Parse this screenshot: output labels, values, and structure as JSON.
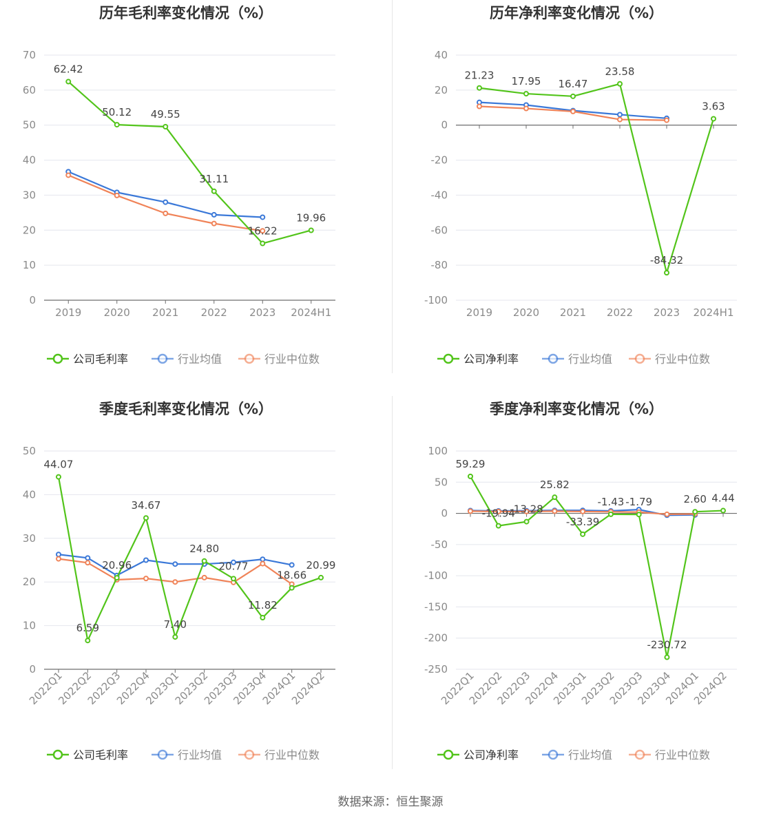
{
  "chart_data": [
    {
      "type": "line",
      "title": "历年毛利率变化情况（%）",
      "categories": [
        "2019",
        "2020",
        "2021",
        "2022",
        "2023",
        "2024H1"
      ],
      "ylim": [
        0,
        70
      ],
      "yticks": [
        0,
        10,
        20,
        30,
        40,
        50,
        60,
        70
      ],
      "x_rotated": false,
      "grid": true,
      "legend_position": "bottom",
      "series": [
        {
          "name": "公司毛利率",
          "color": "#52c41a",
          "values": [
            62.42,
            50.12,
            49.55,
            31.11,
            16.22,
            19.96
          ],
          "labels": [
            "62.42",
            "50.12",
            "49.55",
            "31.11",
            "16.22",
            "19.96"
          ]
        },
        {
          "name": "行业均值",
          "color": "#3a78d8",
          "values": [
            36.7,
            30.8,
            28.0,
            24.4,
            23.7,
            null
          ]
        },
        {
          "name": "行业中位数",
          "color": "#f08358",
          "values": [
            35.7,
            29.9,
            24.8,
            21.9,
            19.8,
            null
          ]
        }
      ]
    },
    {
      "type": "line",
      "title": "历年净利率变化情况（%）",
      "categories": [
        "2019",
        "2020",
        "2021",
        "2022",
        "2023",
        "2024H1"
      ],
      "ylim": [
        -100,
        40
      ],
      "yticks": [
        -100,
        -80,
        -60,
        -40,
        -20,
        0,
        20,
        40
      ],
      "x_rotated": false,
      "grid": true,
      "legend_position": "bottom",
      "series": [
        {
          "name": "公司净利率",
          "color": "#52c41a",
          "values": [
            21.23,
            17.95,
            16.47,
            23.58,
            -84.32,
            3.63
          ],
          "labels": [
            "21.23",
            "17.95",
            "16.47",
            "23.58",
            "-84.32",
            "3.63"
          ]
        },
        {
          "name": "行业均值",
          "color": "#3a78d8",
          "values": [
            13.0,
            11.5,
            8.3,
            6.0,
            3.9,
            null
          ]
        },
        {
          "name": "行业中位数",
          "color": "#f08358",
          "values": [
            10.7,
            9.5,
            7.8,
            3.2,
            2.8,
            null
          ]
        }
      ]
    },
    {
      "type": "line",
      "title": "季度毛利率变化情况（%）",
      "categories": [
        "2022Q1",
        "2022Q2",
        "2022Q3",
        "2022Q4",
        "2023Q1",
        "2023Q2",
        "2023Q3",
        "2023Q4",
        "2024Q1",
        "2024Q2"
      ],
      "ylim": [
        0,
        50
      ],
      "yticks": [
        0,
        10,
        20,
        30,
        40,
        50
      ],
      "x_rotated": true,
      "grid": true,
      "legend_position": "bottom",
      "series": [
        {
          "name": "公司毛利率",
          "color": "#52c41a",
          "values": [
            44.07,
            6.59,
            20.96,
            34.67,
            7.4,
            24.8,
            20.77,
            11.82,
            18.66,
            20.99
          ],
          "labels": [
            "44.07",
            "6.59",
            "20.96",
            "34.67",
            "7.40",
            "24.80",
            "20.77",
            "11.82",
            "18.66",
            "20.99"
          ]
        },
        {
          "name": "行业均值",
          "color": "#3a78d8",
          "values": [
            26.3,
            25.5,
            21.5,
            25.0,
            24.1,
            24.1,
            24.5,
            25.2,
            23.9,
            null
          ]
        },
        {
          "name": "行业中位数",
          "color": "#f08358",
          "values": [
            25.3,
            24.4,
            20.5,
            20.8,
            20.0,
            21.0,
            19.9,
            24.2,
            19.5,
            null
          ]
        }
      ]
    },
    {
      "type": "line",
      "title": "季度净利率变化情况（%）",
      "categories": [
        "2022Q1",
        "2022Q2",
        "2022Q3",
        "2022Q4",
        "2023Q1",
        "2023Q2",
        "2023Q3",
        "2023Q4",
        "2024Q1",
        "2024Q2"
      ],
      "ylim": [
        -250,
        100
      ],
      "yticks": [
        -250,
        -200,
        -150,
        -100,
        -50,
        0,
        50,
        100
      ],
      "x_rotated": true,
      "grid": true,
      "legend_position": "bottom",
      "series": [
        {
          "name": "公司净利率",
          "color": "#52c41a",
          "values": [
            59.29,
            -19.94,
            -13.28,
            25.82,
            -33.39,
            -1.43,
            -1.79,
            -230.72,
            2.6,
            4.44
          ],
          "labels": [
            "59.29",
            "-19.94",
            "-13.28",
            "25.82",
            "-33.39",
            "-1.43",
            "-1.79",
            "-230.72",
            "2.60",
            "4.44"
          ]
        },
        {
          "name": "行业均值",
          "color": "#3a78d8",
          "values": [
            4.5,
            4.0,
            4.2,
            4.8,
            4.8,
            4.0,
            6.0,
            -3.0,
            -2.5,
            null
          ]
        },
        {
          "name": "行业中位数",
          "color": "#f08358",
          "values": [
            3.5,
            3.0,
            3.0,
            3.5,
            3.0,
            2.5,
            2.0,
            -1.5,
            -1.0,
            null
          ]
        }
      ]
    }
  ],
  "footer": {
    "source": "数据来源：恒生聚源"
  }
}
